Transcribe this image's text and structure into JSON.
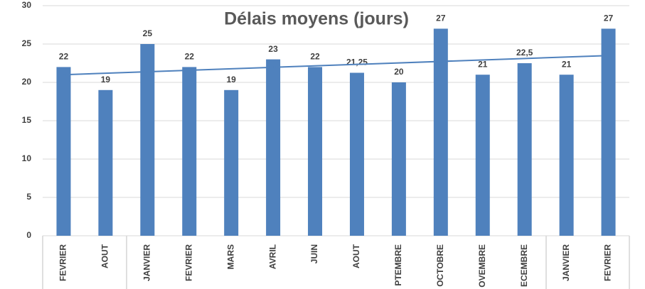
{
  "chart_data": {
    "type": "bar",
    "title": "Délais moyens (jours)",
    "categories": [
      "FEVRIER",
      "AOUT",
      "JANVIER",
      "FEVRIER",
      "MARS",
      "AVRIL",
      "JUIN",
      "AOUT",
      "PTEMBRE",
      "OCTOBRE",
      "OVEMBRE",
      "ECEMBRE",
      "JANVIER",
      "FEVRIER"
    ],
    "values": [
      22,
      19,
      25,
      22,
      19,
      23,
      22,
      21.25,
      20,
      27,
      21,
      22.5,
      21,
      27
    ],
    "value_labels": [
      "22",
      "19",
      "25",
      "22",
      "19",
      "23",
      "22",
      "21,25",
      "20",
      "27",
      "21",
      "22,5",
      "21",
      "27"
    ],
    "color": "#4f81bd",
    "trendline": [
      21.0,
      23.5
    ],
    "trendline_color": "#4f81bd",
    "ylim": [
      0,
      30
    ],
    "yticks": [
      0,
      5,
      10,
      15,
      20,
      25,
      30
    ],
    "grid": true
  }
}
